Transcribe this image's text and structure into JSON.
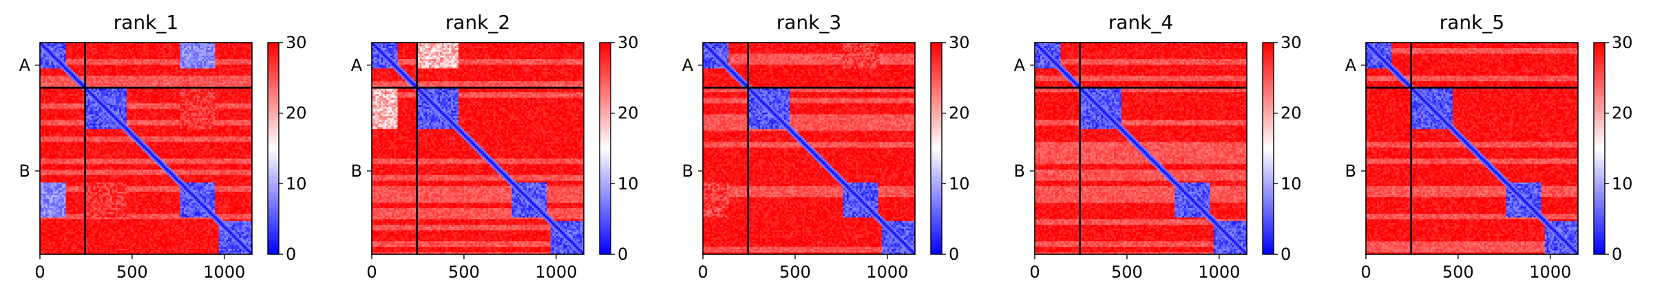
{
  "chart_data": [
    {
      "type": "heatmap",
      "title": "rank_1",
      "variant": 1
    },
    {
      "type": "heatmap",
      "title": "rank_2",
      "variant": 2
    },
    {
      "type": "heatmap",
      "title": "rank_3",
      "variant": 3
    },
    {
      "type": "heatmap",
      "title": "rank_4",
      "variant": 4
    },
    {
      "type": "heatmap",
      "title": "rank_5",
      "variant": 5
    }
  ],
  "shared": {
    "x_ticks": [
      0,
      500,
      1000
    ],
    "xlim": [
      0,
      1150
    ],
    "chain_labels": [
      "A",
      "B"
    ],
    "chain_boundary": 245,
    "colorbar": {
      "ticks": [
        0,
        10,
        20,
        30
      ],
      "range": [
        0,
        30
      ],
      "colormap": "bwr"
    },
    "colors": {
      "low": "#0000ff",
      "mid": "#ffffff",
      "high": "#ff0000",
      "line": "#000000"
    },
    "domains": [
      [
        0,
        145
      ],
      [
        245,
        470
      ],
      [
        760,
        955
      ],
      [
        975,
        1150
      ]
    ]
  }
}
